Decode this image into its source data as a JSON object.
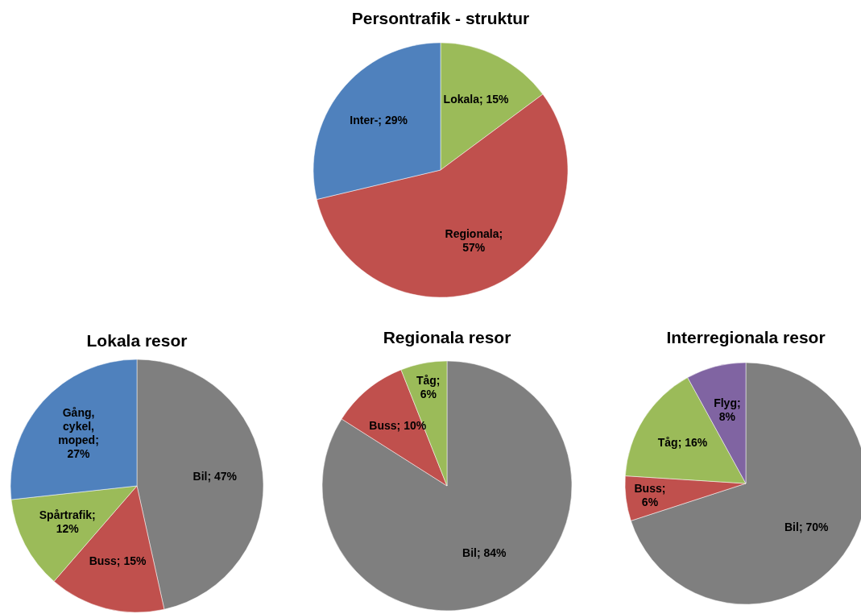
{
  "chart_data": [
    {
      "type": "pie",
      "title": "Persontrafik - struktur",
      "categories": [
        "Lokala; 15%",
        "Regionala; 57%",
        "Inter-; 29%"
      ],
      "values": [
        15,
        57,
        29
      ],
      "colors": [
        "#9bbb59",
        "#c0504d",
        "#4f81bd"
      ]
    },
    {
      "type": "pie",
      "title": "Lokala resor",
      "categories": [
        "Bil; 47%",
        "Buss; 15%",
        "Spårtrafik; 12%",
        "Gång, cykel, moped; 27%"
      ],
      "values": [
        47,
        15,
        12,
        27
      ],
      "colors": [
        "#7f7f7f",
        "#c0504d",
        "#9bbb59",
        "#4f81bd"
      ]
    },
    {
      "type": "pie",
      "title": "Regionala resor",
      "categories": [
        "Bil; 84%",
        "Buss; 10%",
        "Tåg; 6%"
      ],
      "values": [
        84,
        10,
        6
      ],
      "colors": [
        "#7f7f7f",
        "#c0504d",
        "#9bbb59"
      ]
    },
    {
      "type": "pie",
      "title": "Interregionala resor",
      "categories": [
        "Bil; 70%",
        "Buss; 6%",
        "Tåg; 16%",
        "Flyg; 8%"
      ],
      "values": [
        70,
        6,
        16,
        8
      ],
      "colors": [
        "#7f7f7f",
        "#c0504d",
        "#9bbb59",
        "#8064a2"
      ]
    }
  ]
}
